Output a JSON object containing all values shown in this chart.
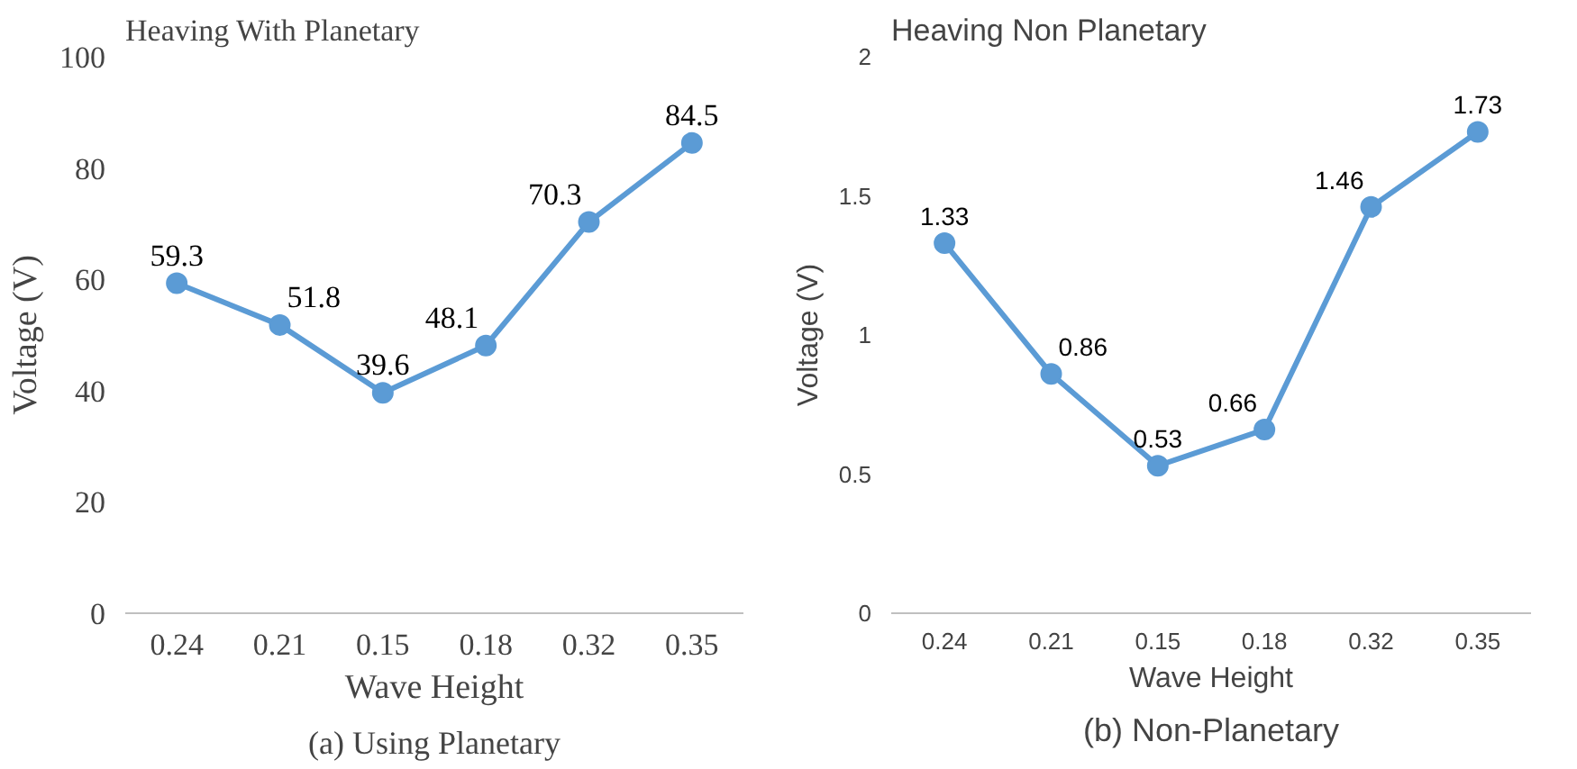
{
  "chart_data": [
    {
      "type": "line",
      "title": "Heaving With Planetary",
      "xlabel": "Wave Height",
      "ylabel": "Voltage (V)",
      "categories": [
        "0.24",
        "0.21",
        "0.15",
        "0.18",
        "0.32",
        "0.35"
      ],
      "series": [
        {
          "color": "#5b9bd5",
          "values": [
            59.3,
            51.8,
            39.6,
            48.1,
            70.3,
            84.5
          ]
        }
      ],
      "ylim": [
        0,
        100
      ],
      "yticks": [
        0,
        20,
        40,
        60,
        80,
        100
      ],
      "marker": "circle",
      "data_labels": true,
      "annotations": [
        "(a) Using Planetary"
      ]
    },
    {
      "type": "line",
      "title": "Heaving Non Planetary",
      "xlabel": "Wave Height",
      "ylabel": "Voltage (V)",
      "categories": [
        "0.24",
        "0.21",
        "0.15",
        "0.18",
        "0.32",
        "0.35"
      ],
      "series": [
        {
          "color": "#5b9bd5",
          "values": [
            1.33,
            0.86,
            0.53,
            0.66,
            1.46,
            1.73
          ]
        }
      ],
      "ylim": [
        0,
        2
      ],
      "yticks": [
        0,
        0.5,
        1,
        1.5,
        2
      ],
      "marker": "circle",
      "data_labels": true,
      "annotations": [
        "(b) Non-Planetary"
      ]
    }
  ]
}
